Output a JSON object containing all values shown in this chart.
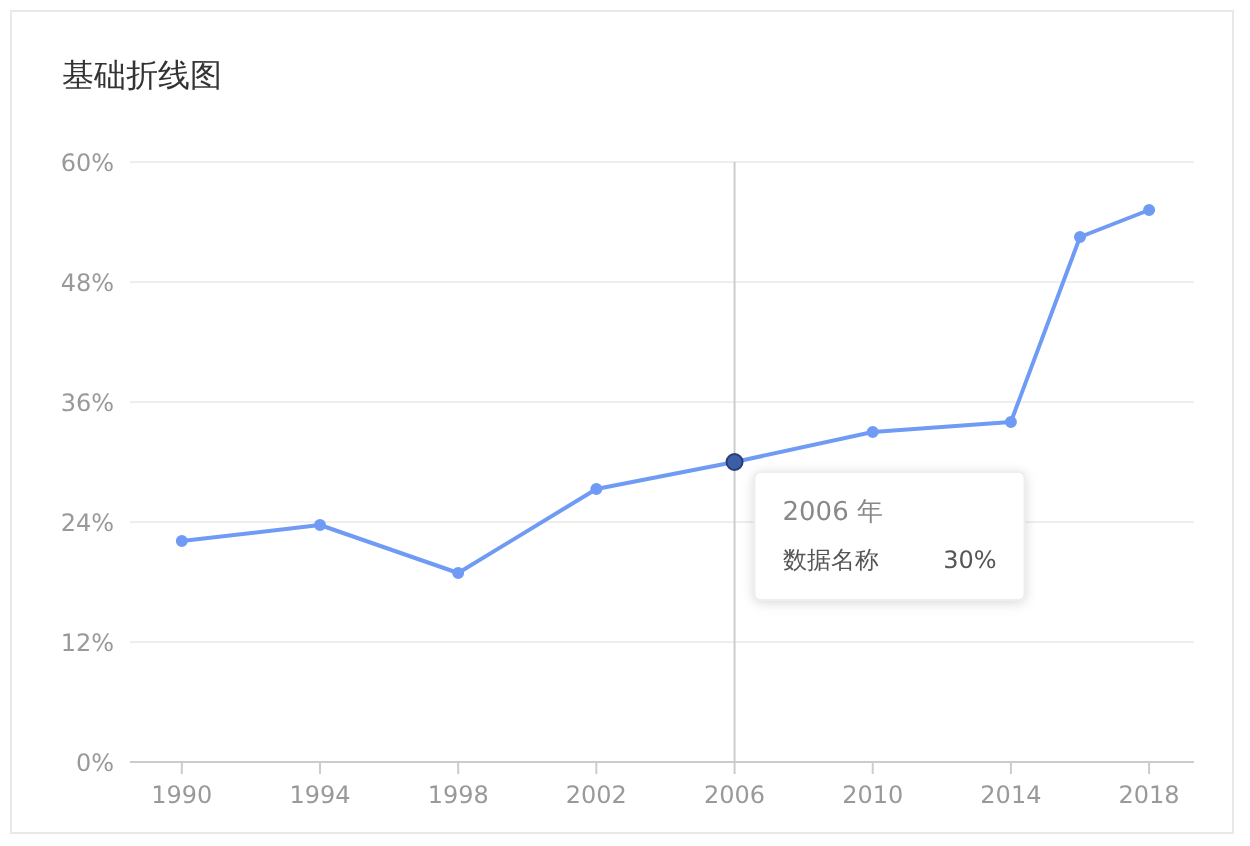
{
  "chart_data": {
    "type": "line",
    "title": "基础折线图",
    "x": [
      1990,
      1994,
      1998,
      2002,
      2006,
      2010,
      2014,
      2016,
      2018
    ],
    "series": [
      {
        "name": "数据名称",
        "color": "#6f9bf5",
        "values": [
          22.1,
          23.7,
          18.9,
          27.3,
          30,
          33,
          34,
          52.5,
          55.2
        ]
      }
    ],
    "xlim": [
      1988.5,
      2019.3
    ],
    "xticks": [
      1990,
      1994,
      1998,
      2002,
      2006,
      2010,
      2014,
      2018
    ],
    "ylim": [
      0,
      60
    ],
    "yticks": [
      {
        "value": 0,
        "label": "0%"
      },
      {
        "value": 12,
        "label": "12%"
      },
      {
        "value": 24,
        "label": "24%"
      },
      {
        "value": 36,
        "label": "36%"
      },
      {
        "value": 48,
        "label": "48%"
      },
      {
        "value": 60,
        "label": "60%"
      }
    ],
    "grid": "y",
    "legend": false,
    "marker": "circle",
    "line_style": "solid",
    "ref_lines": [
      {
        "axis": "x",
        "value": 2006,
        "color": "#cccccc"
      }
    ],
    "annotations": [
      {
        "text": "2006 年",
        "x": 2006,
        "y": 30
      },
      "30%"
    ]
  }
}
